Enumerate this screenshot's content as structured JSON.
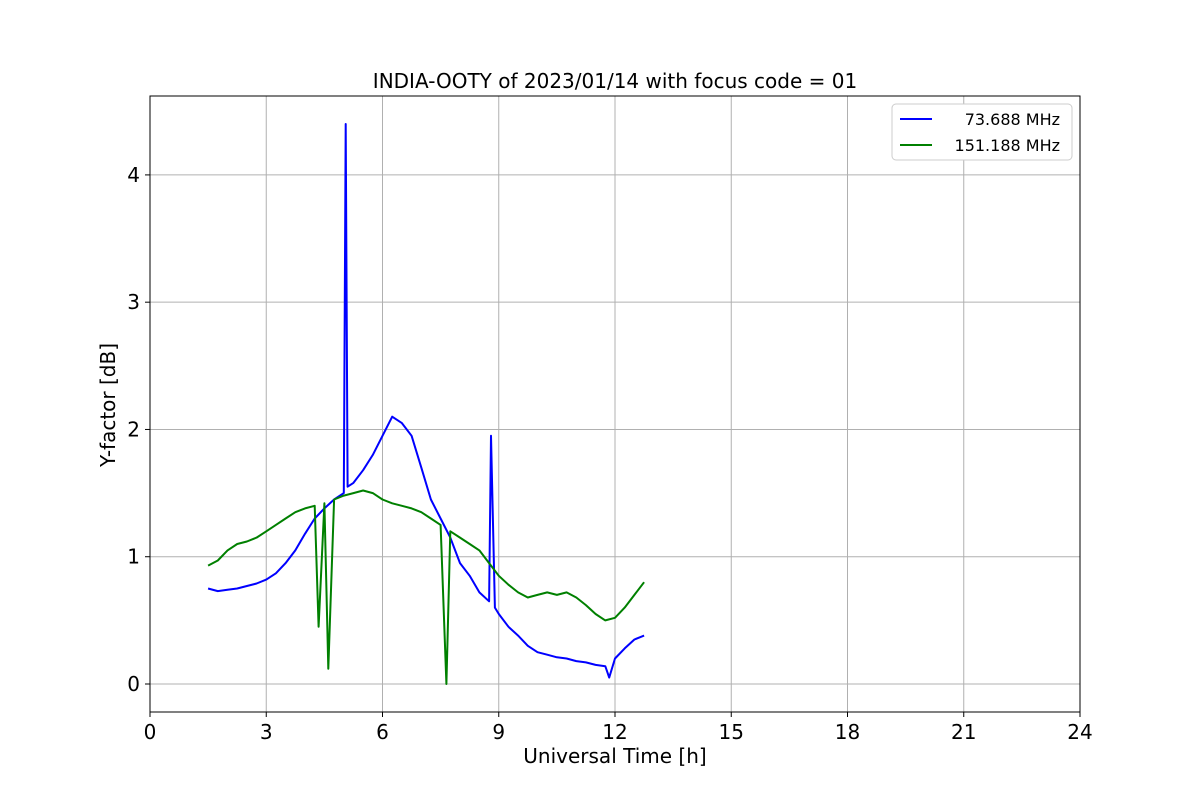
{
  "chart_data": {
    "type": "line",
    "title": "INDIA-OOTY of 2023/01/14 with focus code = 01",
    "xlabel": "Universal Time [h]",
    "ylabel": "Y-factor [dB]",
    "xlim": [
      0,
      24
    ],
    "ylim": [
      -0.22,
      4.62
    ],
    "xticks": [
      0,
      3,
      6,
      9,
      12,
      15,
      18,
      21,
      24
    ],
    "yticks": [
      0,
      1,
      2,
      3,
      4
    ],
    "grid": true,
    "legend_position": "upper-right",
    "series": [
      {
        "name": "73.688 MHz",
        "color": "#0000ff",
        "x": [
          1.5,
          1.75,
          2.0,
          2.25,
          2.5,
          2.75,
          3.0,
          3.25,
          3.5,
          3.75,
          4.0,
          4.25,
          4.5,
          4.75,
          5.0,
          5.05,
          5.1,
          5.25,
          5.5,
          5.75,
          6.0,
          6.25,
          6.5,
          6.75,
          7.0,
          7.25,
          7.5,
          7.75,
          8.0,
          8.25,
          8.5,
          8.75,
          8.8,
          8.9,
          9.0,
          9.25,
          9.5,
          9.75,
          10.0,
          10.25,
          10.5,
          10.75,
          11.0,
          11.25,
          11.5,
          11.75,
          11.85,
          12.0,
          12.25,
          12.5,
          12.75
        ],
        "y": [
          0.75,
          0.73,
          0.74,
          0.75,
          0.77,
          0.79,
          0.82,
          0.87,
          0.95,
          1.05,
          1.18,
          1.3,
          1.38,
          1.45,
          1.5,
          4.4,
          1.55,
          1.58,
          1.68,
          1.8,
          1.95,
          2.1,
          2.05,
          1.95,
          1.7,
          1.45,
          1.3,
          1.15,
          0.95,
          0.85,
          0.72,
          0.65,
          1.95,
          0.6,
          0.55,
          0.45,
          0.38,
          0.3,
          0.25,
          0.23,
          0.21,
          0.2,
          0.18,
          0.17,
          0.15,
          0.14,
          0.05,
          0.2,
          0.28,
          0.35,
          0.38
        ]
      },
      {
        "name": "151.188 MHz",
        "color": "#008000",
        "x": [
          1.5,
          1.75,
          2.0,
          2.25,
          2.5,
          2.75,
          3.0,
          3.25,
          3.5,
          3.75,
          4.0,
          4.25,
          4.35,
          4.5,
          4.6,
          4.75,
          5.0,
          5.25,
          5.5,
          5.75,
          6.0,
          6.25,
          6.5,
          6.75,
          7.0,
          7.25,
          7.5,
          7.65,
          7.75,
          8.0,
          8.25,
          8.5,
          8.75,
          9.0,
          9.25,
          9.5,
          9.75,
          10.0,
          10.25,
          10.5,
          10.75,
          11.0,
          11.25,
          11.5,
          11.75,
          12.0,
          12.25,
          12.5,
          12.75
        ],
        "y": [
          0.93,
          0.97,
          1.05,
          1.1,
          1.12,
          1.15,
          1.2,
          1.25,
          1.3,
          1.35,
          1.38,
          1.4,
          0.45,
          1.42,
          0.12,
          1.45,
          1.48,
          1.5,
          1.52,
          1.5,
          1.45,
          1.42,
          1.4,
          1.38,
          1.35,
          1.3,
          1.25,
          0.0,
          1.2,
          1.15,
          1.1,
          1.05,
          0.95,
          0.85,
          0.78,
          0.72,
          0.68,
          0.7,
          0.72,
          0.7,
          0.72,
          0.68,
          0.62,
          0.55,
          0.5,
          0.52,
          0.6,
          0.7,
          0.8
        ]
      }
    ]
  }
}
